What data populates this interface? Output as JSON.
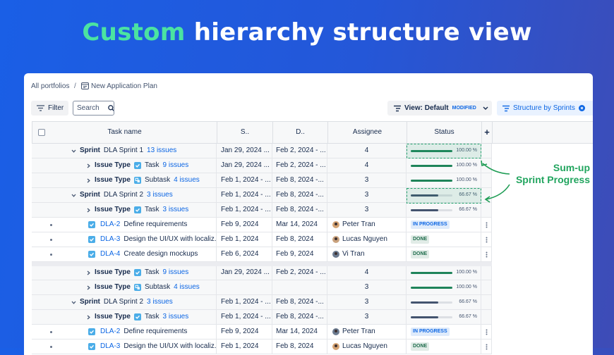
{
  "header": {
    "title_highlight": "Custom",
    "title_rest": "hierarchy structure view"
  },
  "breadcrumb": {
    "root": "All portfolios",
    "separator": "/",
    "current": "New Application Plan"
  },
  "toolbar": {
    "filter": "Filter",
    "search": "Search",
    "view": "View: Default",
    "view_badge": "MODIFIED",
    "structure": "Structure by Sprints"
  },
  "table": {
    "columns": [
      "Task name",
      "S..",
      "D..",
      "Assignee",
      "Status",
      "+"
    ],
    "sections": [
      [
        {
          "sprint": "Sprint",
          "name": "DLA Sprint 1",
          "count": "13 issues",
          "start": "Jan 29, 2024 ...",
          "due": "Feb 2, 2024 - ...",
          "assignees": 4,
          "progress": 100,
          "progress_label": "100.00 %",
          "bar_color": "#1f845a"
        },
        {
          "issue_type": "Issue Type",
          "type": "Task",
          "count": "9 issues",
          "start": "Jan 29, 2024 ...",
          "due": "Feb 2, 2024 - ...",
          "assignees": 4,
          "progress": 100,
          "progress_label": "100.00 %",
          "bar_color": "#1f845a"
        },
        {
          "issue_type": "Issue Type",
          "type": "Subtask",
          "count": "4 issues",
          "start": "Feb 1, 2024 - ...",
          "due": "Feb 8, 2024 -...",
          "assignees": 3,
          "progress": 100,
          "progress_label": "100.00 %",
          "bar_color": "#1f845a"
        },
        {
          "sprint": "Sprint",
          "name": "DLA Sprint 2",
          "count": "3 issues",
          "start": "Feb 1, 2024 - ...",
          "due": "Feb 8, 2024 -...",
          "assignees": 3,
          "progress": 66.67,
          "progress_label": "66.67 %",
          "bar_color": "#44546f"
        },
        {
          "issue_type": "Issue Type",
          "type": "Task",
          "count": "3 issues",
          "start": "Feb 1, 2024 - ...",
          "due": "Feb 8, 2024 -...",
          "assignees": 3,
          "progress": 66.67,
          "progress_label": "66.67 %",
          "bar_color": "#44546f"
        },
        {
          "key": "DLA-2",
          "summary": "Define requirements",
          "start": "Feb 9, 2024",
          "due": "Mar 14, 2024",
          "assignee": "Peter Tran",
          "status": "IN PROGRESS",
          "status_color": "#0c66e4"
        },
        {
          "key": "DLA-3",
          "summary": "Design the UI/UX with localiz...",
          "start": "Feb 1, 2024",
          "due": "Feb 8, 2024",
          "assignee": "Lucas Nguyen",
          "status": "DONE",
          "status_color": "#216e4e"
        },
        {
          "key": "DLA-4",
          "summary": "Create design mockups",
          "start": "Feb 6, 2024",
          "due": "Feb 9, 2024",
          "assignee": "Vi Tran",
          "status": "DONE",
          "status_color": "#216e4e"
        }
      ],
      [
        {
          "issue_type": "Issue Type",
          "type": "Task",
          "count": "9 issues",
          "start": "Jan 29, 2024 ...",
          "due": "Feb 2, 2024 - ...",
          "assignees": 4,
          "progress": 100,
          "progress_label": "100.00 %",
          "bar_color": "#1f845a"
        },
        {
          "issue_type": "Issue Type",
          "type": "Subtask",
          "count": "4 issues",
          "assignees": 3,
          "progress": 100,
          "progress_label": "100.00 %",
          "bar_color": "#1f845a"
        },
        {
          "sprint": "Sprint",
          "name": "DLA Sprint 2",
          "count": "3 issues",
          "start": "Feb 1, 2024 - ...",
          "due": "Feb 8, 2024 -...",
          "assignees": 3,
          "progress": 66.67,
          "progress_label": "66.67 %",
          "bar_color": "#44546f"
        },
        {
          "issue_type": "Issue Type",
          "type": "Task",
          "count": "3 issues",
          "start": "Feb 1, 2024 - ...",
          "due": "Feb 8, 2024 -...",
          "assignees": 3,
          "progress": 66.67,
          "progress_label": "66.67 %",
          "bar_color": "#44546f"
        },
        {
          "key": "DLA-2",
          "summary": "Define requirements",
          "start": "Feb 9, 2024",
          "due": "Mar 14, 2024",
          "assignee": "Peter Tran",
          "status": "IN PROGRESS",
          "status_color": "#0c66e4"
        },
        {
          "key": "DLA-3",
          "summary": "Design the UI/UX with localiz...",
          "start": "Feb 1, 2024",
          "due": "Feb 8, 2024",
          "assignee": "Lucas Nguyen",
          "status": "DONE",
          "status_color": "#216e4e"
        }
      ]
    ]
  },
  "annotation": {
    "line1": "Sum-up",
    "line2": "Sprint Progress"
  }
}
